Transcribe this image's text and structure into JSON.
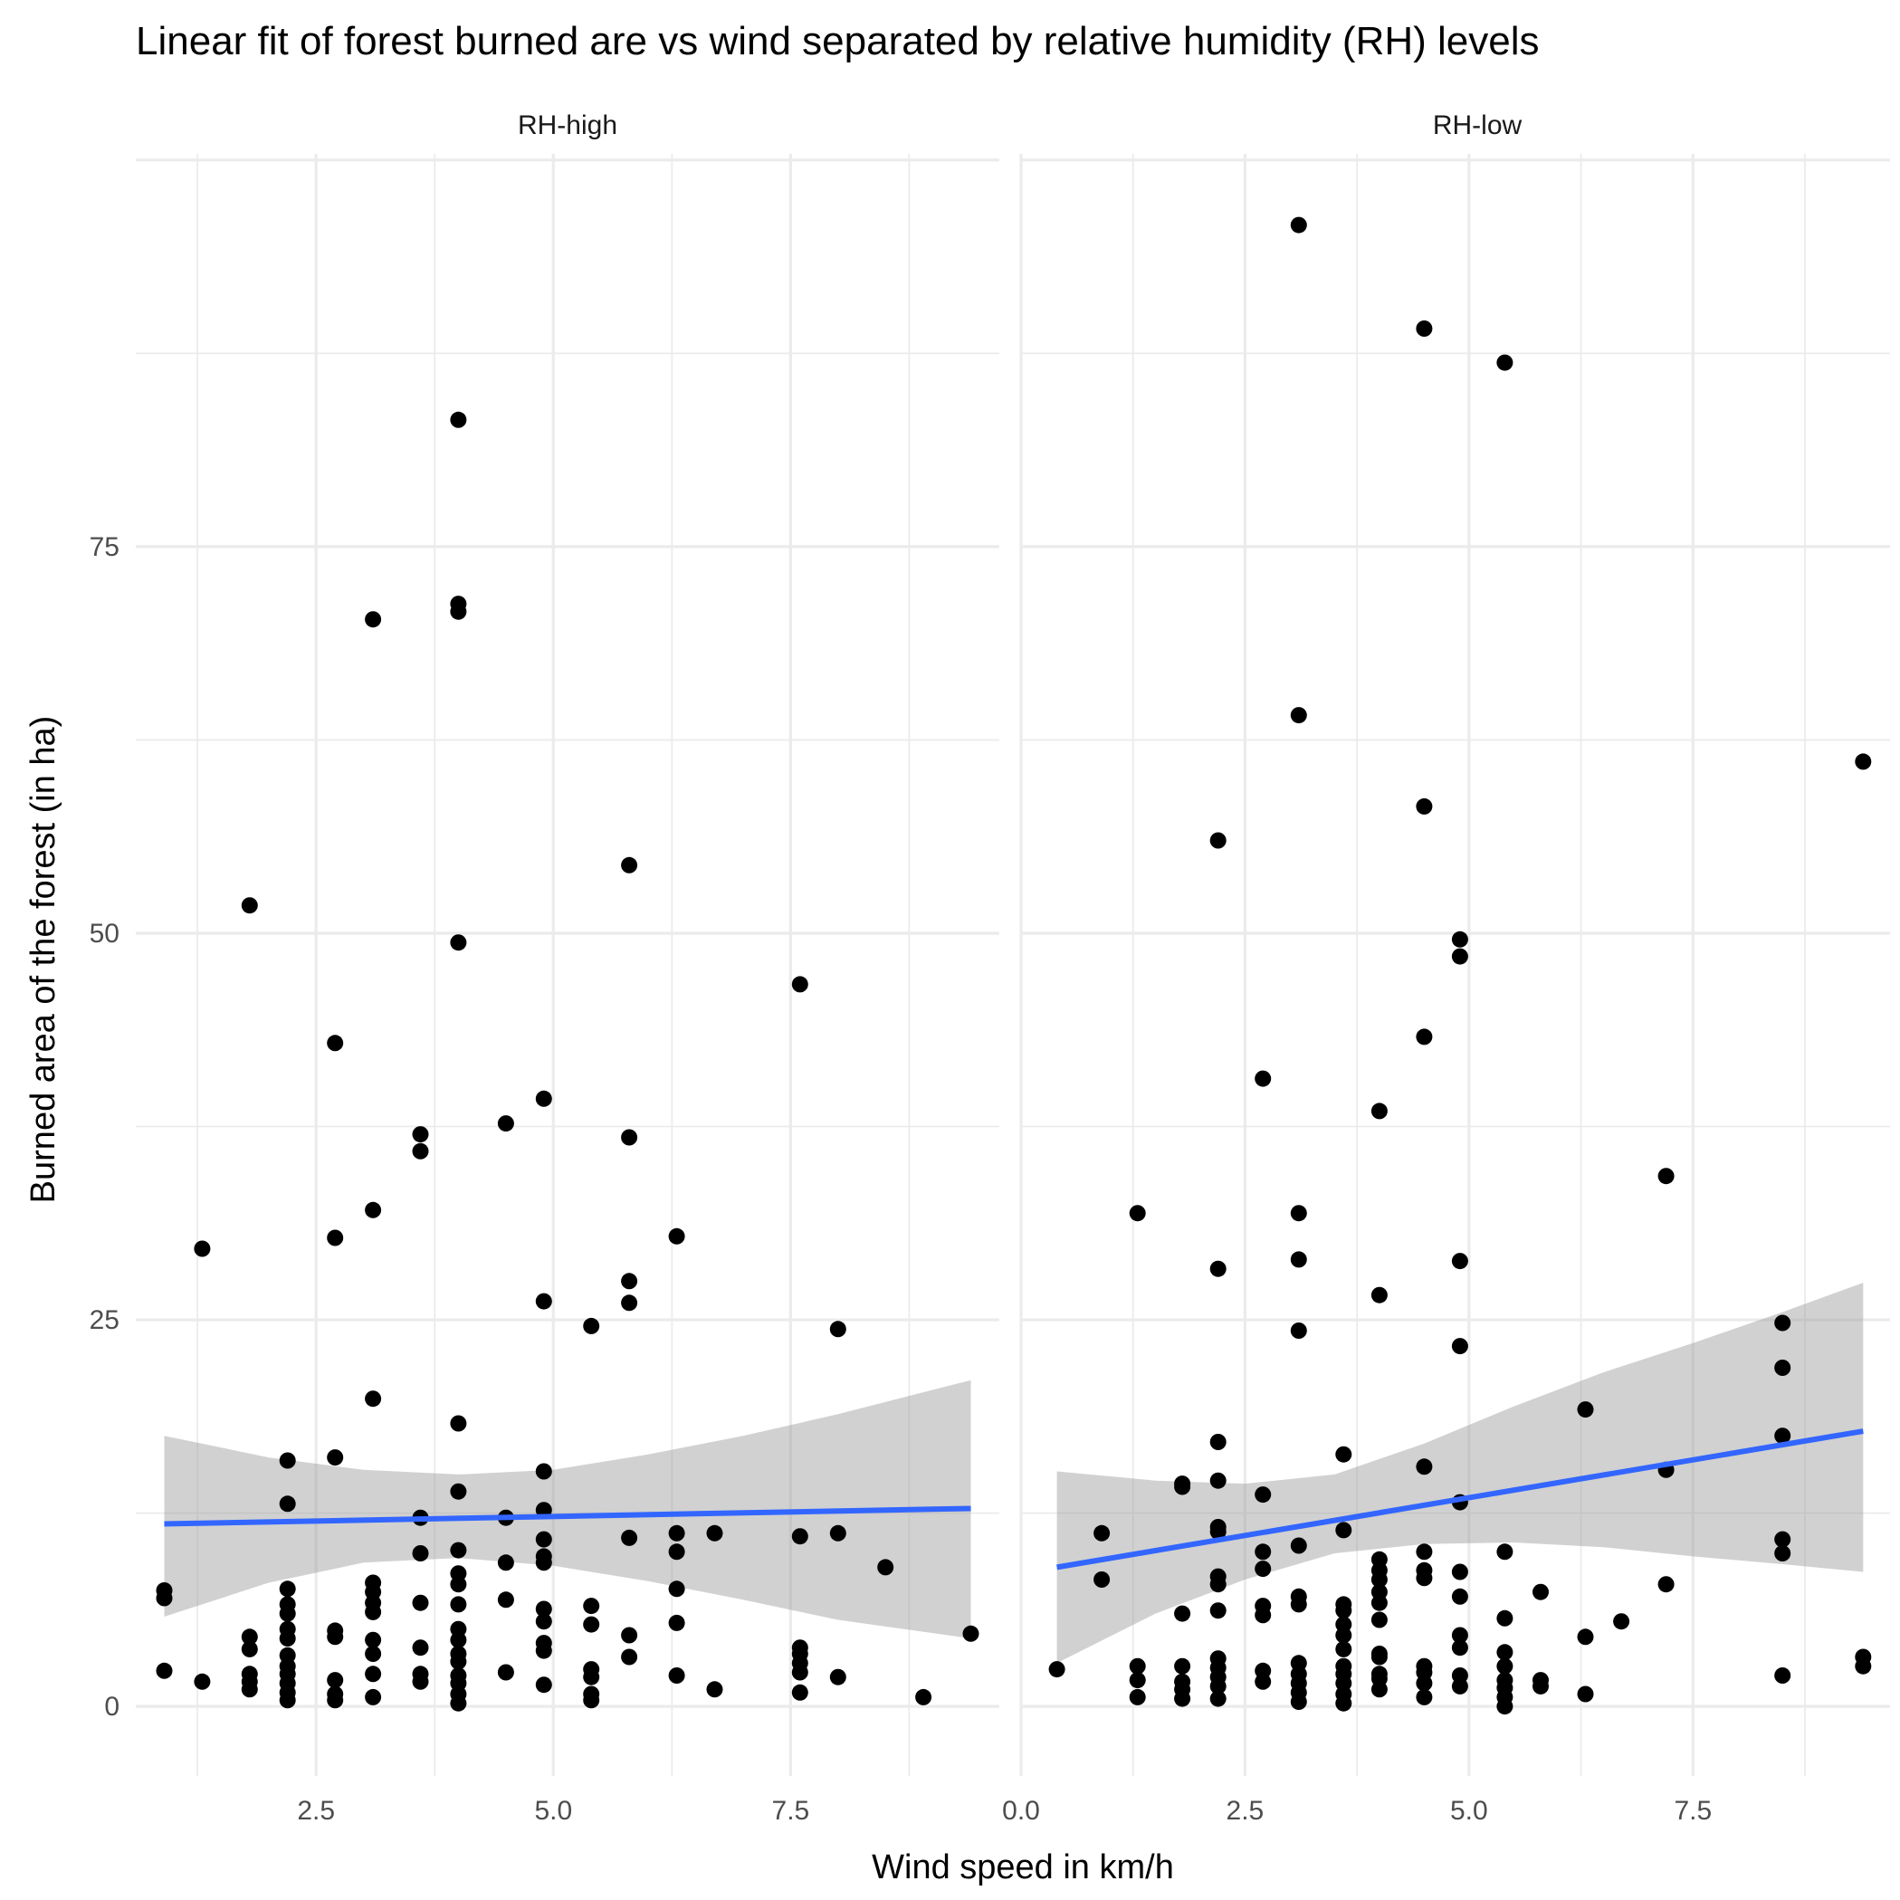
{
  "chart_data": {
    "type": "scatter",
    "title": "Linear fit of forest burned are vs wind separated by relative humidity (RH) levels",
    "xlabel": "Wind speed in km/h",
    "ylabel": "Burned area of the forest (in ha)",
    "grid": true,
    "colors": {
      "points": "#000000",
      "fit_line": "#3366FF",
      "ribbon": "#999999",
      "grid": "#EBEBEB"
    },
    "panels": [
      {
        "label": "RH-high",
        "xlim": [
          0.6,
          9.7
        ],
        "ylim": [
          -4.5,
          100.4
        ],
        "x_ticks": [
          "2.5",
          "5.0",
          "7.5"
        ],
        "y_ticks": [
          "0",
          "25",
          "50",
          "75"
        ],
        "points": [
          [
            0.9,
            7.5
          ],
          [
            0.9,
            7.0
          ],
          [
            0.9,
            2.3
          ],
          [
            1.3,
            29.6
          ],
          [
            1.3,
            1.6
          ],
          [
            1.8,
            51.8
          ],
          [
            1.8,
            4.5
          ],
          [
            1.8,
            3.7
          ],
          [
            1.8,
            2.1
          ],
          [
            1.8,
            1.6
          ],
          [
            1.8,
            1.1
          ],
          [
            2.2,
            15.9
          ],
          [
            2.2,
            13.1
          ],
          [
            2.2,
            7.6
          ],
          [
            2.2,
            6.6
          ],
          [
            2.2,
            6.0
          ],
          [
            2.2,
            5.0
          ],
          [
            2.2,
            4.4
          ],
          [
            2.2,
            3.3
          ],
          [
            2.2,
            2.6
          ],
          [
            2.2,
            2.1
          ],
          [
            2.2,
            1.5
          ],
          [
            2.2,
            0.9
          ],
          [
            2.2,
            0.4
          ],
          [
            2.7,
            42.9
          ],
          [
            2.7,
            30.3
          ],
          [
            2.7,
            16.1
          ],
          [
            2.7,
            4.9
          ],
          [
            2.7,
            4.5
          ],
          [
            2.7,
            1.7
          ],
          [
            2.7,
            0.8
          ],
          [
            2.7,
            0.4
          ],
          [
            3.1,
            70.3
          ],
          [
            3.1,
            32.1
          ],
          [
            3.1,
            19.9
          ],
          [
            3.1,
            8.0
          ],
          [
            3.1,
            7.4
          ],
          [
            3.1,
            6.7
          ],
          [
            3.1,
            6.1
          ],
          [
            3.1,
            4.3
          ],
          [
            3.1,
            3.4
          ],
          [
            3.1,
            2.1
          ],
          [
            3.1,
            0.6
          ],
          [
            3.6,
            37.0
          ],
          [
            3.6,
            35.9
          ],
          [
            3.6,
            12.2
          ],
          [
            3.6,
            9.9
          ],
          [
            3.6,
            6.7
          ],
          [
            3.6,
            3.8
          ],
          [
            3.6,
            2.1
          ],
          [
            3.6,
            1.6
          ],
          [
            4.0,
            83.2
          ],
          [
            4.0,
            71.3
          ],
          [
            4.0,
            70.8
          ],
          [
            4.0,
            49.4
          ],
          [
            4.0,
            18.3
          ],
          [
            4.0,
            13.9
          ],
          [
            4.0,
            10.1
          ],
          [
            4.0,
            8.6
          ],
          [
            4.0,
            7.9
          ],
          [
            4.0,
            6.6
          ],
          [
            4.0,
            5.0
          ],
          [
            4.0,
            4.3
          ],
          [
            4.0,
            3.4
          ],
          [
            4.0,
            2.9
          ],
          [
            4.0,
            2.0
          ],
          [
            4.0,
            1.5
          ],
          [
            4.0,
            0.8
          ],
          [
            4.0,
            0.2
          ],
          [
            4.5,
            37.7
          ],
          [
            4.5,
            12.2
          ],
          [
            4.5,
            9.3
          ],
          [
            4.5,
            6.9
          ],
          [
            4.5,
            2.2
          ],
          [
            4.9,
            39.3
          ],
          [
            4.9,
            26.2
          ],
          [
            4.9,
            15.2
          ],
          [
            4.9,
            12.7
          ],
          [
            4.9,
            10.8
          ],
          [
            4.9,
            9.7
          ],
          [
            4.9,
            9.3
          ],
          [
            4.9,
            6.3
          ],
          [
            4.9,
            5.5
          ],
          [
            4.9,
            4.1
          ],
          [
            4.9,
            3.6
          ],
          [
            4.9,
            1.4
          ],
          [
            5.4,
            24.6
          ],
          [
            5.4,
            6.5
          ],
          [
            5.4,
            5.3
          ],
          [
            5.4,
            2.4
          ],
          [
            5.4,
            1.9
          ],
          [
            5.4,
            0.8
          ],
          [
            5.4,
            0.4
          ],
          [
            5.8,
            54.4
          ],
          [
            5.8,
            36.8
          ],
          [
            5.8,
            27.5
          ],
          [
            5.8,
            26.1
          ],
          [
            5.8,
            10.9
          ],
          [
            5.8,
            4.6
          ],
          [
            5.8,
            3.2
          ],
          [
            6.3,
            30.4
          ],
          [
            6.3,
            11.2
          ],
          [
            6.3,
            10.0
          ],
          [
            6.3,
            7.6
          ],
          [
            6.3,
            5.4
          ],
          [
            6.3,
            2.0
          ],
          [
            6.7,
            11.2
          ],
          [
            6.7,
            1.1
          ],
          [
            7.6,
            46.7
          ],
          [
            7.6,
            11.0
          ],
          [
            7.6,
            3.8
          ],
          [
            7.6,
            3.4
          ],
          [
            7.6,
            2.8
          ],
          [
            7.6,
            2.2
          ],
          [
            7.6,
            0.9
          ],
          [
            8.0,
            24.4
          ],
          [
            8.0,
            11.2
          ],
          [
            8.0,
            1.9
          ],
          [
            8.5,
            9.0
          ],
          [
            8.9,
            0.6
          ],
          [
            9.4,
            4.7
          ]
        ],
        "fit": {
          "x": [
            0.9,
            9.4
          ],
          "y": [
            11.8,
            12.8
          ],
          "lower": [
            5.8,
            4.4
          ],
          "upper": [
            17.5,
            21.1
          ]
        },
        "ribbon": {
          "x": [
            0.9,
            2.0,
            3.0,
            4.0,
            5.0,
            6.0,
            7.0,
            8.0,
            9.4
          ],
          "lower": [
            5.8,
            8.0,
            9.3,
            9.6,
            9.1,
            8.1,
            6.9,
            5.6,
            4.4
          ],
          "upper": [
            17.5,
            16.1,
            15.3,
            15.0,
            15.3,
            16.3,
            17.5,
            18.9,
            21.1
          ]
        }
      },
      {
        "label": "RH-low",
        "xlim": [
          0.0,
          9.7
        ],
        "ylim": [
          -4.5,
          100.4
        ],
        "x_ticks": [
          "0.0",
          "2.5",
          "5.0",
          "7.5"
        ],
        "y_ticks": [],
        "points": [
          [
            0.4,
            2.4
          ],
          [
            0.9,
            11.2
          ],
          [
            0.9,
            8.2
          ],
          [
            1.3,
            31.9
          ],
          [
            1.3,
            2.6
          ],
          [
            1.3,
            1.7
          ],
          [
            1.3,
            0.6
          ],
          [
            1.8,
            14.4
          ],
          [
            1.8,
            14.2
          ],
          [
            1.8,
            6.0
          ],
          [
            1.8,
            2.6
          ],
          [
            1.8,
            1.6
          ],
          [
            1.8,
            1.1
          ],
          [
            1.8,
            0.5
          ],
          [
            2.2,
            56.0
          ],
          [
            2.2,
            28.3
          ],
          [
            2.2,
            17.1
          ],
          [
            2.2,
            14.6
          ],
          [
            2.2,
            11.6
          ],
          [
            2.2,
            11.3
          ],
          [
            2.2,
            8.4
          ],
          [
            2.2,
            7.9
          ],
          [
            2.2,
            6.2
          ],
          [
            2.2,
            3.1
          ],
          [
            2.2,
            2.5
          ],
          [
            2.2,
            1.9
          ],
          [
            2.2,
            1.3
          ],
          [
            2.2,
            0.5
          ],
          [
            2.7,
            40.6
          ],
          [
            2.7,
            13.7
          ],
          [
            2.7,
            10.0
          ],
          [
            2.7,
            8.9
          ],
          [
            2.7,
            6.5
          ],
          [
            2.7,
            5.9
          ],
          [
            2.7,
            2.3
          ],
          [
            2.7,
            1.6
          ],
          [
            3.1,
            95.8
          ],
          [
            3.1,
            64.1
          ],
          [
            3.1,
            31.9
          ],
          [
            3.1,
            28.9
          ],
          [
            3.1,
            24.3
          ],
          [
            3.1,
            10.4
          ],
          [
            3.1,
            7.1
          ],
          [
            3.1,
            6.6
          ],
          [
            3.1,
            2.8
          ],
          [
            3.1,
            2.1
          ],
          [
            3.1,
            1.5
          ],
          [
            3.1,
            0.9
          ],
          [
            3.1,
            0.3
          ],
          [
            3.6,
            16.3
          ],
          [
            3.6,
            11.4
          ],
          [
            3.6,
            6.6
          ],
          [
            3.6,
            6.2
          ],
          [
            3.6,
            5.3
          ],
          [
            3.6,
            4.6
          ],
          [
            3.6,
            3.7
          ],
          [
            3.6,
            2.6
          ],
          [
            3.6,
            2.1
          ],
          [
            3.6,
            1.5
          ],
          [
            3.6,
            0.8
          ],
          [
            3.6,
            0.2
          ],
          [
            4.0,
            38.5
          ],
          [
            4.0,
            26.6
          ],
          [
            4.0,
            9.5
          ],
          [
            4.0,
            8.8
          ],
          [
            4.0,
            8.2
          ],
          [
            4.0,
            7.4
          ],
          [
            4.0,
            6.7
          ],
          [
            4.0,
            5.6
          ],
          [
            4.0,
            3.4
          ],
          [
            4.0,
            3.2
          ],
          [
            4.0,
            2.1
          ],
          [
            4.0,
            1.8
          ],
          [
            4.0,
            1.1
          ],
          [
            4.5,
            89.1
          ],
          [
            4.5,
            58.2
          ],
          [
            4.5,
            43.3
          ],
          [
            4.5,
            15.5
          ],
          [
            4.5,
            10.0
          ],
          [
            4.5,
            8.8
          ],
          [
            4.5,
            8.3
          ],
          [
            4.5,
            2.6
          ],
          [
            4.5,
            2.2
          ],
          [
            4.5,
            1.5
          ],
          [
            4.5,
            0.6
          ],
          [
            4.9,
            49.6
          ],
          [
            4.9,
            48.5
          ],
          [
            4.9,
            28.8
          ],
          [
            4.9,
            23.3
          ],
          [
            4.9,
            13.2
          ],
          [
            4.9,
            8.7
          ],
          [
            4.9,
            7.1
          ],
          [
            4.9,
            4.6
          ],
          [
            4.9,
            3.8
          ],
          [
            4.9,
            2.0
          ],
          [
            4.9,
            1.3
          ],
          [
            5.4,
            86.9
          ],
          [
            5.4,
            10.0
          ],
          [
            5.4,
            5.7
          ],
          [
            5.4,
            3.5
          ],
          [
            5.4,
            2.6
          ],
          [
            5.4,
            1.7
          ],
          [
            5.4,
            1.2
          ],
          [
            5.4,
            0.6
          ],
          [
            5.4,
            0.0
          ],
          [
            5.8,
            7.4
          ],
          [
            5.8,
            1.7
          ],
          [
            5.8,
            1.3
          ],
          [
            6.3,
            19.2
          ],
          [
            6.3,
            4.5
          ],
          [
            6.3,
            0.8
          ],
          [
            6.7,
            5.5
          ],
          [
            7.2,
            34.3
          ],
          [
            7.2,
            15.3
          ],
          [
            7.2,
            7.9
          ],
          [
            8.5,
            24.8
          ],
          [
            8.5,
            21.9
          ],
          [
            8.5,
            17.5
          ],
          [
            8.5,
            10.8
          ],
          [
            8.5,
            9.9
          ],
          [
            8.5,
            2.0
          ],
          [
            9.4,
            61.1
          ],
          [
            9.4,
            3.2
          ],
          [
            9.4,
            2.6
          ]
        ],
        "fit": {
          "x": [
            0.4,
            9.4
          ],
          "y": [
            9.0,
            17.8
          ],
          "lower": [
            2.8,
            8.7
          ],
          "upper": [
            15.2,
            27.4
          ]
        },
        "ribbon": {
          "x": [
            0.4,
            1.5,
            2.5,
            3.5,
            4.5,
            5.5,
            6.5,
            7.5,
            8.5,
            9.4
          ],
          "lower": [
            2.8,
            6.0,
            8.2,
            9.9,
            10.5,
            10.6,
            10.3,
            9.7,
            9.2,
            8.7
          ],
          "upper": [
            15.2,
            14.6,
            14.4,
            15.0,
            17.0,
            19.4,
            21.6,
            23.5,
            25.5,
            27.4
          ]
        }
      }
    ]
  }
}
